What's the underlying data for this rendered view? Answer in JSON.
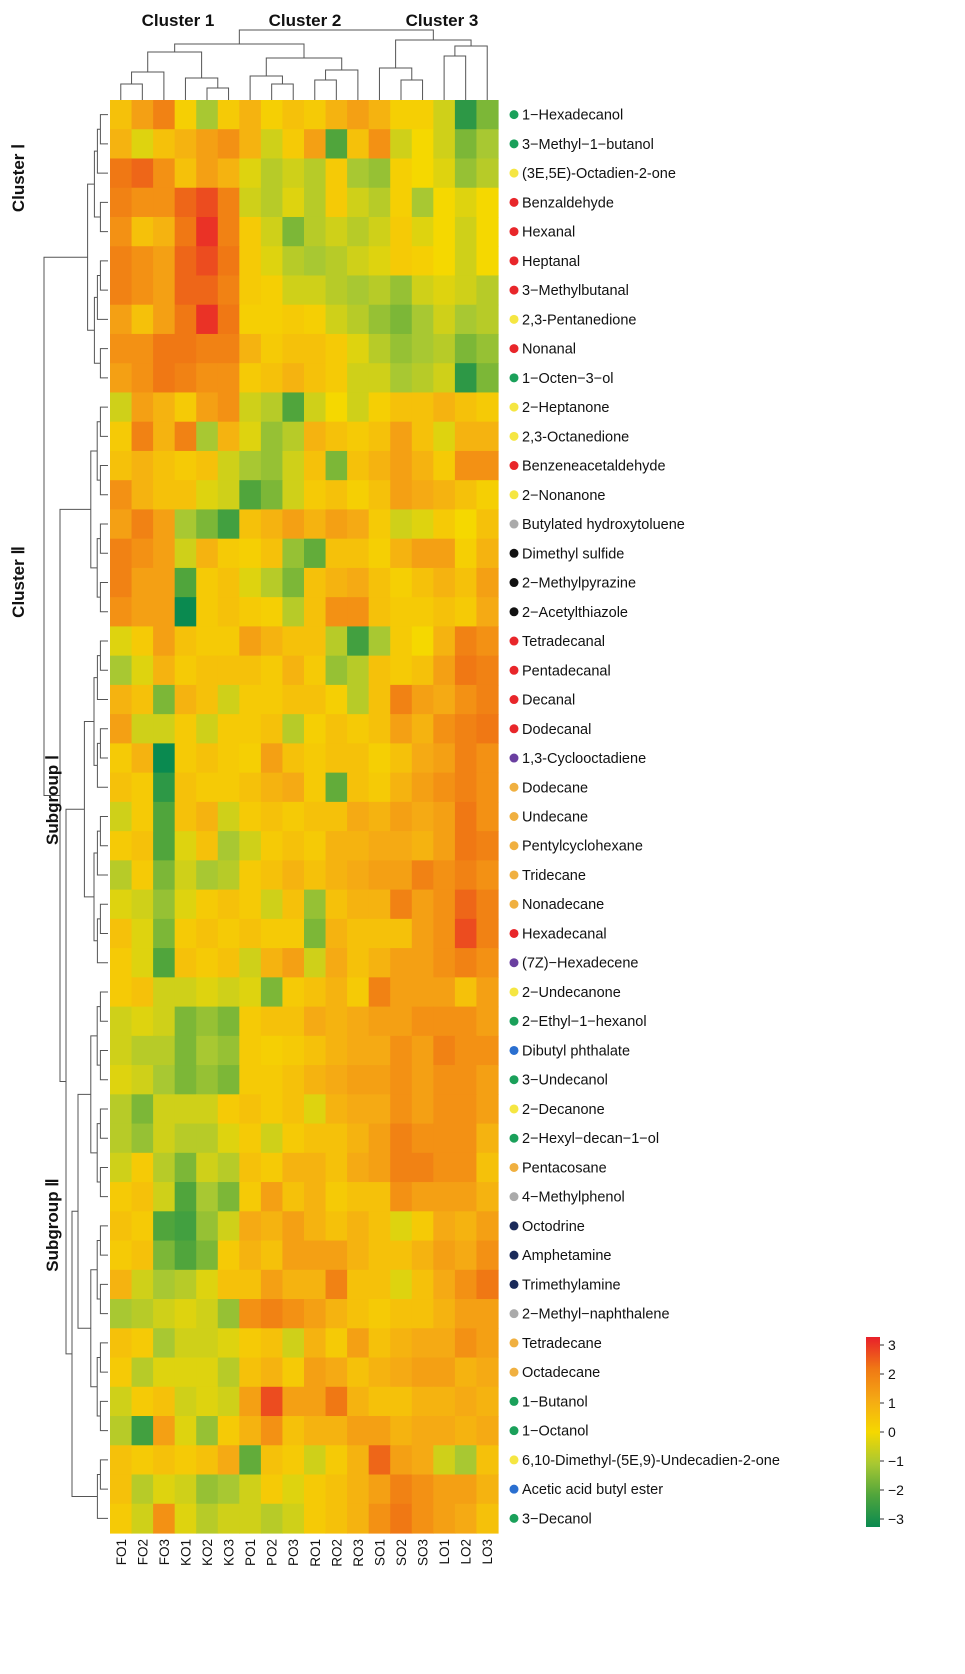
{
  "chart_data": {
    "type": "heatmap",
    "columns": [
      "FO1",
      "FO2",
      "FO3",
      "KO1",
      "KO2",
      "KO3",
      "PO1",
      "PO2",
      "PO3",
      "RO1",
      "RO2",
      "RO3",
      "SO1",
      "SO2",
      "SO3",
      "LO1",
      "LO2",
      "LO3"
    ],
    "column_cluster_labels": [
      "Cluster 1",
      "Cluster 2",
      "Cluster 3"
    ],
    "row_cluster_labels": [
      "Cluster Ⅰ",
      "Cluster Ⅱ",
      "Subgroup Ⅰ",
      "Subgroup Ⅱ"
    ],
    "rows": [
      {
        "name": "1−Hexadecanol",
        "class_color": "#1aa05a"
      },
      {
        "name": "3−Methyl−1−butanol",
        "class_color": "#1aa05a"
      },
      {
        "name": "(3E,5E)-Octadien-2-one",
        "class_color": "#f5e642"
      },
      {
        "name": "Benzaldehyde",
        "class_color": "#e8262a"
      },
      {
        "name": "Hexanal",
        "class_color": "#e8262a"
      },
      {
        "name": "Heptanal",
        "class_color": "#e8262a"
      },
      {
        "name": "3−Methylbutanal",
        "class_color": "#e8262a"
      },
      {
        "name": "2,3-Pentanedione",
        "class_color": "#f5e642"
      },
      {
        "name": "Nonanal",
        "class_color": "#e8262a"
      },
      {
        "name": "1−Octen−3−ol",
        "class_color": "#1aa05a"
      },
      {
        "name": "2−Heptanone",
        "class_color": "#f5e642"
      },
      {
        "name": "2,3-Octanedione",
        "class_color": "#f5e642"
      },
      {
        "name": "Benzeneacetaldehyde",
        "class_color": "#e8262a"
      },
      {
        "name": "2−Nonanone",
        "class_color": "#f5e642"
      },
      {
        "name": "Butylated hydroxytoluene",
        "class_color": "#aaaaaa"
      },
      {
        "name": "Dimethyl sulfide",
        "class_color": "#111111"
      },
      {
        "name": "2−Methylpyrazine",
        "class_color": "#111111"
      },
      {
        "name": "2−Acetylthiazole",
        "class_color": "#111111"
      },
      {
        "name": "Tetradecanal",
        "class_color": "#e8262a"
      },
      {
        "name": "Pentadecanal",
        "class_color": "#e8262a"
      },
      {
        "name": "Decanal",
        "class_color": "#e8262a"
      },
      {
        "name": "Dodecanal",
        "class_color": "#e8262a"
      },
      {
        "name": "1,3-Cyclooctadiene",
        "class_color": "#6a3fa0"
      },
      {
        "name": "Dodecane",
        "class_color": "#f0b040"
      },
      {
        "name": "Undecane",
        "class_color": "#f0b040"
      },
      {
        "name": "Pentylcyclohexane",
        "class_color": "#f0b040"
      },
      {
        "name": "Tridecane",
        "class_color": "#f0b040"
      },
      {
        "name": "Nonadecane",
        "class_color": "#f0b040"
      },
      {
        "name": "Hexadecanal",
        "class_color": "#e8262a"
      },
      {
        "name": "(7Z)−Hexadecene",
        "class_color": "#6a3fa0"
      },
      {
        "name": "2−Undecanone",
        "class_color": "#f5e642"
      },
      {
        "name": "2−Ethyl−1−hexanol",
        "class_color": "#1aa05a"
      },
      {
        "name": "Dibutyl phthalate",
        "class_color": "#2a6fd0"
      },
      {
        "name": "3−Undecanol",
        "class_color": "#1aa05a"
      },
      {
        "name": "2−Decanone",
        "class_color": "#f5e642"
      },
      {
        "name": "2−Hexyl−decan−1−ol",
        "class_color": "#1aa05a"
      },
      {
        "name": "Pentacosane",
        "class_color": "#f0b040"
      },
      {
        "name": "4−Methylphenol",
        "class_color": "#aaaaaa"
      },
      {
        "name": "Octodrine",
        "class_color": "#1a2a5a"
      },
      {
        "name": "Amphetamine",
        "class_color": "#1a2a5a"
      },
      {
        "name": "Trimethylamine",
        "class_color": "#1a2a5a"
      },
      {
        "name": "2−Methyl−naphthalene",
        "class_color": "#aaaaaa"
      },
      {
        "name": "Tetradecane",
        "class_color": "#f0b040"
      },
      {
        "name": "Octadecane",
        "class_color": "#f0b040"
      },
      {
        "name": "1−Butanol",
        "class_color": "#1aa05a"
      },
      {
        "name": "1−Octanol",
        "class_color": "#1aa05a"
      },
      {
        "name": "6,10-Dimethyl-(5E,9)-Undecadien-2-one",
        "class_color": "#f5e642"
      },
      {
        "name": "Acetic acid butyl ester",
        "class_color": "#2a6fd0"
      },
      {
        "name": "3−Decanol",
        "class_color": "#1aa05a"
      }
    ],
    "values": [
      [
        0.5,
        1.2,
        1.8,
        0.2,
        -1,
        0.3,
        0.8,
        0.2,
        0.5,
        0.3,
        0.8,
        1.2,
        0.8,
        0.2,
        0.2,
        -0.5,
        -2.5,
        -1.5
      ],
      [
        0.8,
        -0.3,
        0.5,
        0.8,
        1.2,
        1.5,
        0.8,
        -0.5,
        0.3,
        1.2,
        -2.0,
        0.5,
        1.5,
        -0.5,
        0,
        -0.5,
        -1.5,
        -1.0
      ],
      [
        2,
        2.2,
        1.5,
        0.5,
        1.2,
        0.8,
        -0.3,
        -0.8,
        -0.5,
        -0.8,
        0.3,
        -1.0,
        -1.2,
        0.2,
        0,
        -0.3,
        -1.2,
        -0.8
      ],
      [
        1.8,
        1.5,
        1.5,
        2.2,
        2.5,
        1.8,
        -0.5,
        -0.8,
        -0.3,
        -0.8,
        0.3,
        -0.5,
        -0.8,
        0.2,
        -1.0,
        0,
        -0.3,
        0
      ],
      [
        1.5,
        0.5,
        0.8,
        2,
        2.8,
        1.8,
        0.3,
        -0.5,
        -1.5,
        -0.8,
        -0.5,
        -0.8,
        -0.5,
        0.3,
        -0.3,
        0,
        -0.5,
        0
      ],
      [
        1.8,
        1.5,
        1.2,
        2.2,
        2.5,
        2,
        0.3,
        -0.3,
        -0.8,
        -1.0,
        -0.8,
        -0.5,
        -0.3,
        0.3,
        0.2,
        0,
        -0.5,
        0
      ],
      [
        1.8,
        1.5,
        1.2,
        2.2,
        2.2,
        1.8,
        0.3,
        0.2,
        -0.5,
        -0.5,
        -0.8,
        -1.0,
        -0.8,
        -1.2,
        -0.5,
        -0.3,
        -0.5,
        -0.8
      ],
      [
        1.2,
        0.5,
        1.2,
        2,
        2.8,
        2,
        0.2,
        0.2,
        0.3,
        0.2,
        -0.5,
        -0.8,
        -1.2,
        -1.5,
        -1.0,
        -0.5,
        -1.0,
        -0.8
      ],
      [
        1.5,
        1.5,
        2,
        2,
        1.8,
        1.8,
        0.8,
        0.3,
        0.5,
        0.5,
        0.3,
        -0.3,
        -0.8,
        -1.2,
        -1.0,
        -0.8,
        -1.5,
        -1.2
      ],
      [
        1.2,
        1.5,
        2,
        1.8,
        1.5,
        1.5,
        0.3,
        0.5,
        0.8,
        0.5,
        0.3,
        -0.5,
        -0.5,
        -1.0,
        -0.8,
        -0.5,
        -2.5,
        -1.5
      ],
      [
        -0.5,
        1.2,
        0.8,
        0.3,
        1.2,
        1.5,
        -0.5,
        -0.8,
        -2.0,
        -0.5,
        0,
        -0.5,
        0.2,
        0.5,
        0.5,
        0.8,
        0.5,
        0.3
      ],
      [
        0.3,
        1.8,
        0.8,
        1.8,
        -1.0,
        0.8,
        -0.3,
        -1.2,
        -0.8,
        0.8,
        0.5,
        0.3,
        0.5,
        1.2,
        0.5,
        -0.3,
        0.8,
        0.8
      ],
      [
        0.5,
        0.8,
        0.5,
        0.3,
        0.5,
        -0.5,
        -1.0,
        -1.2,
        -0.5,
        0.5,
        -1.5,
        0.5,
        0.8,
        1.2,
        0.8,
        0.3,
        1.5,
        1.5
      ],
      [
        1.5,
        0.8,
        0.5,
        0.5,
        -0.3,
        -0.5,
        -2.0,
        -1.5,
        -0.5,
        0.3,
        0.5,
        0.2,
        0.5,
        1.2,
        1.0,
        0.8,
        0.5,
        0.2
      ],
      [
        1.2,
        1.8,
        1.2,
        -1.0,
        -1.5,
        -2.2,
        0.5,
        0.8,
        1.2,
        0.8,
        1.2,
        1.0,
        0.3,
        -0.5,
        -0.3,
        0.3,
        0,
        0.5
      ],
      [
        1.8,
        1.5,
        1.2,
        -0.5,
        0.8,
        0.3,
        0.2,
        0.5,
        -1.2,
        -1.8,
        0.5,
        0.5,
        0.2,
        0.8,
        1.2,
        1.2,
        0.2,
        0.8
      ],
      [
        1.8,
        1.2,
        1.2,
        -2.0,
        0.3,
        0.5,
        -0.3,
        -0.8,
        -1.5,
        0.5,
        0.8,
        1.0,
        0.5,
        0.2,
        0.5,
        0.8,
        0.5,
        1.2
      ],
      [
        1.5,
        1.2,
        1.2,
        -3.0,
        0.3,
        0.5,
        0.3,
        0.2,
        -0.8,
        0.5,
        1.5,
        1.5,
        0.5,
        0.3,
        0.3,
        0.5,
        0.3,
        1.0
      ],
      [
        -0.3,
        0.3,
        1.2,
        0.5,
        0.3,
        0.3,
        1.2,
        0.8,
        0.5,
        0.5,
        -0.8,
        -2.2,
        -1.0,
        0.3,
        0,
        0.8,
        1.8,
        1.5
      ],
      [
        -1.0,
        -0.3,
        0.8,
        0.3,
        0.5,
        0.5,
        0.5,
        0.3,
        0.8,
        0.3,
        -1.2,
        -0.8,
        0.5,
        0.3,
        0.5,
        1.2,
        2.0,
        1.8
      ],
      [
        0.8,
        0.5,
        -1.5,
        0.8,
        0.5,
        -0.5,
        0.3,
        0.3,
        0.5,
        0.5,
        0.2,
        -0.8,
        0.5,
        1.8,
        1.2,
        1.0,
        1.5,
        1.8
      ],
      [
        1.2,
        -0.5,
        -0.5,
        0.3,
        -0.5,
        0.3,
        0.3,
        0.5,
        -0.8,
        0.2,
        0.5,
        0.3,
        0.5,
        1.2,
        0.8,
        1.5,
        1.8,
        2.0
      ],
      [
        0.3,
        0.8,
        -3.0,
        0.3,
        0.5,
        0.3,
        0.2,
        1.2,
        0.5,
        0.3,
        0.5,
        0.5,
        0.2,
        0.5,
        1.0,
        1.2,
        1.8,
        1.5
      ],
      [
        0.5,
        0.3,
        -2.5,
        0.5,
        0.3,
        0.3,
        0.5,
        0.8,
        1.0,
        0.3,
        -1.8,
        0.5,
        0.3,
        0.8,
        1.2,
        1.5,
        1.8,
        1.5
      ],
      [
        -0.5,
        0.3,
        -2.0,
        0.5,
        0.8,
        -0.5,
        0.3,
        0.5,
        0.3,
        0.5,
        0.5,
        1.0,
        0.8,
        1.2,
        1.0,
        1.2,
        2.0,
        1.5
      ],
      [
        0.3,
        0.5,
        -2.0,
        -0.3,
        0.5,
        -1.0,
        -0.5,
        0.3,
        0.5,
        0.3,
        0.8,
        0.8,
        1.0,
        1.0,
        0.8,
        1.2,
        2.0,
        1.8
      ],
      [
        -0.8,
        0.3,
        -1.5,
        -0.5,
        -1.0,
        -0.8,
        0.3,
        0.5,
        0.8,
        0.5,
        0.8,
        1.0,
        1.2,
        1.2,
        1.8,
        1.5,
        1.8,
        1.5
      ],
      [
        -0.3,
        -0.5,
        -1.2,
        -0.3,
        0.3,
        0.5,
        0.3,
        -0.5,
        0.5,
        -1.2,
        0.5,
        0.8,
        0.8,
        1.8,
        1.2,
        1.5,
        2.2,
        1.8
      ],
      [
        0.5,
        -0.3,
        -1.5,
        0.3,
        0.5,
        0.3,
        0.5,
        0.3,
        0.3,
        -1.5,
        0.8,
        0.5,
        0.5,
        0.5,
        1.2,
        1.5,
        2.5,
        1.8
      ],
      [
        0.3,
        -0.3,
        -2.0,
        0.5,
        0.3,
        0.5,
        -0.5,
        0.8,
        1.2,
        -0.5,
        1.0,
        0.5,
        0.8,
        1.2,
        1.2,
        1.5,
        1.8,
        1.5
      ],
      [
        0.3,
        0.5,
        -0.5,
        -0.5,
        -0.3,
        -0.5,
        -0.3,
        -1.5,
        0.3,
        0.5,
        0.8,
        0.3,
        1.8,
        1.2,
        1.2,
        1.2,
        0.5,
        1.2
      ],
      [
        -0.5,
        -0.3,
        -0.5,
        -1.5,
        -1.2,
        -1.5,
        0.3,
        0.5,
        0.5,
        1.0,
        0.8,
        1.0,
        1.2,
        1.2,
        1.5,
        1.5,
        1.5,
        1.2
      ],
      [
        -0.5,
        -0.8,
        -0.8,
        -1.5,
        -1.0,
        -1.2,
        0.3,
        0.2,
        0.3,
        0.5,
        0.8,
        1.0,
        1.0,
        1.5,
        1.2,
        1.8,
        1.5,
        1.5
      ],
      [
        -0.3,
        -0.5,
        -1.0,
        -1.5,
        -1.2,
        -1.5,
        0.3,
        0.3,
        0.5,
        0.8,
        1.0,
        1.2,
        1.2,
        1.5,
        1.2,
        1.5,
        1.5,
        1.2
      ],
      [
        -0.8,
        -1.5,
        -0.5,
        -0.5,
        -0.5,
        0.3,
        0.5,
        0.3,
        0.5,
        -0.3,
        0.8,
        1.0,
        1.0,
        1.5,
        1.2,
        1.5,
        1.5,
        1.2
      ],
      [
        -0.8,
        -1.2,
        -0.5,
        -0.8,
        -0.8,
        -0.3,
        0.3,
        -0.5,
        0.3,
        0.5,
        0.5,
        0.8,
        1.2,
        1.8,
        1.5,
        1.5,
        1.5,
        0.8
      ],
      [
        -0.5,
        0.3,
        -0.8,
        -1.5,
        -0.5,
        -0.8,
        0.5,
        0.3,
        0.8,
        0.8,
        0.5,
        1.0,
        1.2,
        1.8,
        1.8,
        1.5,
        1.5,
        0.5
      ],
      [
        0.3,
        0.5,
        -0.5,
        -2.0,
        -1.0,
        -1.5,
        0.3,
        1.2,
        0.5,
        0.8,
        0.3,
        0.5,
        0.5,
        1.5,
        1.2,
        1.2,
        1.2,
        0.8
      ],
      [
        0.5,
        0.3,
        -2.0,
        -2.2,
        -1.2,
        -0.5,
        1.0,
        0.8,
        1.2,
        0.8,
        0.5,
        0.8,
        0.5,
        -0.3,
        0.3,
        1.0,
        0.8,
        1.2
      ],
      [
        0.3,
        0.5,
        -1.5,
        -2.0,
        -1.5,
        0.3,
        0.8,
        0.5,
        1.2,
        1.2,
        1.2,
        0.8,
        0.5,
        0.5,
        0.8,
        1.2,
        1.0,
        1.5
      ],
      [
        0.8,
        -0.5,
        -1.0,
        -0.8,
        -0.3,
        0.5,
        0.5,
        1.2,
        0.8,
        0.8,
        1.8,
        0.5,
        0.5,
        -0.3,
        0.5,
        1.0,
        1.5,
        2.0
      ],
      [
        -1.0,
        -0.8,
        -0.5,
        -0.3,
        -0.5,
        -1.2,
        1.5,
        1.8,
        1.5,
        1.2,
        0.8,
        0.5,
        0.3,
        0.5,
        0.5,
        0.8,
        1.2,
        1.2
      ],
      [
        0.5,
        0.3,
        -1.0,
        -0.5,
        -0.5,
        -0.3,
        0.3,
        0.5,
        -0.5,
        0.8,
        0.3,
        1.2,
        0.5,
        0.8,
        1.0,
        1.0,
        1.5,
        1.2
      ],
      [
        0.3,
        -0.8,
        -0.3,
        -0.3,
        -0.3,
        -0.8,
        0.5,
        0.8,
        0.3,
        1.2,
        1.0,
        0.5,
        0.8,
        1.0,
        1.2,
        1.2,
        0.8,
        1.0
      ],
      [
        -0.5,
        0.3,
        0.5,
        -0.5,
        -0.3,
        -0.5,
        1.2,
        2.5,
        1.2,
        1.2,
        2.0,
        0.8,
        0.5,
        0.5,
        0.8,
        0.8,
        1.0,
        0.8
      ],
      [
        -0.8,
        -2.2,
        1.2,
        -0.3,
        -1.2,
        0.3,
        0.8,
        1.5,
        0.5,
        0.8,
        0.8,
        1.2,
        1.2,
        0.8,
        1.0,
        1.0,
        0.8,
        1.0
      ],
      [
        0.5,
        0.3,
        0.5,
        0.3,
        0.5,
        1.0,
        -1.8,
        0.5,
        0.3,
        -0.5,
        0.3,
        0.8,
        2.2,
        1.2,
        1.0,
        -0.5,
        -1.0,
        0.5
      ],
      [
        0.5,
        -0.8,
        -0.3,
        -0.5,
        -1.2,
        -1.0,
        -0.5,
        0.3,
        -0.3,
        0.3,
        0.5,
        0.8,
        1.2,
        1.8,
        1.5,
        1.2,
        1.2,
        0.8
      ],
      [
        0.3,
        -0.5,
        1.5,
        -0.3,
        -0.8,
        -0.5,
        -0.5,
        -0.8,
        -0.5,
        0.3,
        0.5,
        0.8,
        1.5,
        2.0,
        1.5,
        1.2,
        1.0,
        0.5
      ]
    ],
    "colorbar": {
      "min": -3,
      "max": 3,
      "ticks": [
        "3",
        "2",
        "1",
        "0",
        "−1",
        "−2",
        "−3"
      ]
    },
    "colors": {
      "low": "#0a8a50",
      "mid_low": "#a8c832",
      "mid": "#f5d800",
      "mid_high": "#f29a12",
      "high": "#e8202a"
    }
  }
}
